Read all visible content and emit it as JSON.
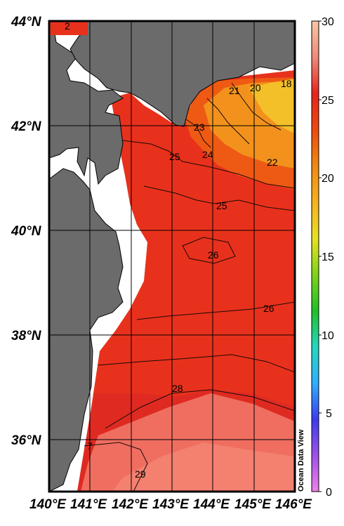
{
  "map": {
    "lat_labels": [
      "44°N",
      "42°N",
      "40°N",
      "38°N",
      "36°N"
    ],
    "lon_labels": [
      "140°E",
      "141°E",
      "142°E",
      "143°E",
      "144°E",
      "145°E",
      "146°E"
    ],
    "contour_labels": [
      "2",
      "21",
      "20",
      "18",
      "23",
      "22",
      "24",
      "25",
      "25",
      "26",
      "26",
      "28",
      "7",
      "29"
    ],
    "watermark": "Ocean Data View",
    "colors": {
      "land": "#6b6b6b",
      "no_data": "#ffffff",
      "sea_warm": "#e8311c",
      "sea_hot": "#f07060",
      "sea_cool": "#f29218",
      "sea_cooler": "#f3c21e"
    }
  },
  "colorbar": {
    "ticks": [
      "30",
      "25",
      "20",
      "15",
      "10",
      "5",
      "0"
    ],
    "min": 0,
    "max": 30,
    "palette": [
      "#f080e8",
      "#a050e8",
      "#3a3cf0",
      "#2fb0ff",
      "#22d8c0",
      "#20c028",
      "#80d418",
      "#e8e020",
      "#f5b21e",
      "#f08a10",
      "#ee4a10",
      "#e8241c",
      "#ef8a7a",
      "#f8c7a6"
    ]
  }
}
